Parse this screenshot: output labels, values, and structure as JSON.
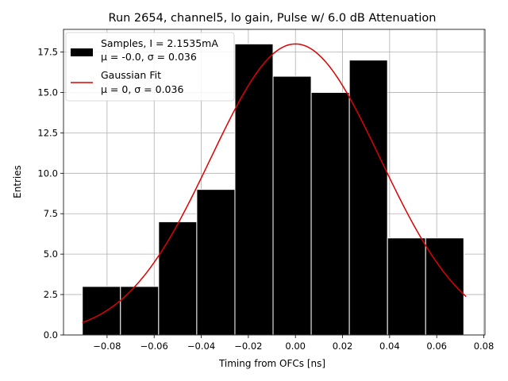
{
  "chart_data": {
    "type": "bar",
    "title": "Run 2654, channel5, lo gain, Pulse w/ 6.0 dB Attenuation",
    "xlabel": "Timing from OFCs [ns]",
    "ylabel": "Entries",
    "xlim": [
      -0.0985,
      0.0805
    ],
    "ylim": [
      0,
      18.9
    ],
    "xticks": [
      -0.08,
      -0.06,
      -0.04,
      -0.02,
      0.0,
      0.02,
      0.04,
      0.06,
      0.08
    ],
    "xtick_labels": [
      "−0.08",
      "−0.06",
      "−0.04",
      "−0.02",
      "0.00",
      "0.02",
      "0.04",
      "0.06",
      "0.08"
    ],
    "yticks": [
      0,
      2.5,
      5,
      7.5,
      10,
      12.5,
      15,
      17.5
    ],
    "ytick_labels": [
      "0.0",
      "2.5",
      "5.0",
      "7.5",
      "10.0",
      "12.5",
      "15.0",
      "17.5"
    ],
    "grid": true,
    "legend_position": "top-left",
    "bar_color": "#000000",
    "fit_color": "#e00000",
    "bin_edges": [
      -0.0905,
      -0.0743,
      -0.0581,
      -0.0419,
      -0.0257,
      -0.0095,
      0.0067,
      0.0229,
      0.0391,
      0.0553,
      0.0715
    ],
    "series": [
      {
        "name": "Samples, I = 2.1535mA",
        "legend_line2": "μ = -0.0, σ = 0.036",
        "kind": "histogram",
        "values": [
          3,
          3,
          7,
          9,
          18,
          16,
          15,
          17,
          6,
          6
        ]
      },
      {
        "name": "Gaussian Fit",
        "legend_line2": "μ = 0, σ = 0.036",
        "kind": "line",
        "mu": 0.0,
        "sigma": 0.036,
        "amplitude": 18.0,
        "x_range": [
          -0.0905,
          0.0725
        ]
      }
    ]
  }
}
